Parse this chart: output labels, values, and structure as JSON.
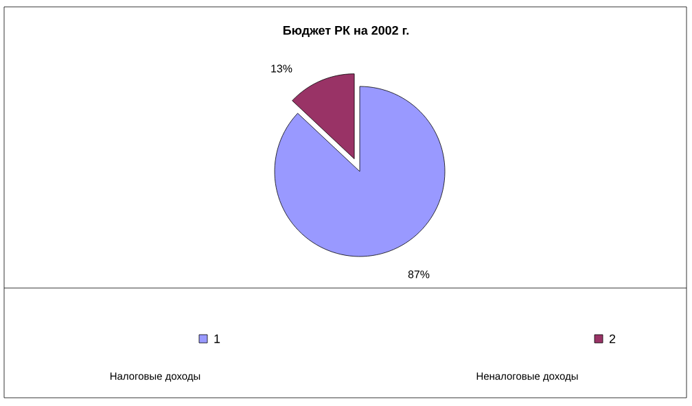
{
  "chart_data": {
    "type": "pie",
    "title": "Бюджет РК на 2002 г.",
    "categories": [
      "1",
      "2"
    ],
    "values": [
      87,
      13
    ],
    "colors": [
      "#9999ff",
      "#993366"
    ],
    "value_labels": [
      "87%",
      "13%"
    ],
    "legend": "bottom",
    "annotations": [
      "Налоговые доходы",
      "Неналоговые доходы"
    ]
  }
}
